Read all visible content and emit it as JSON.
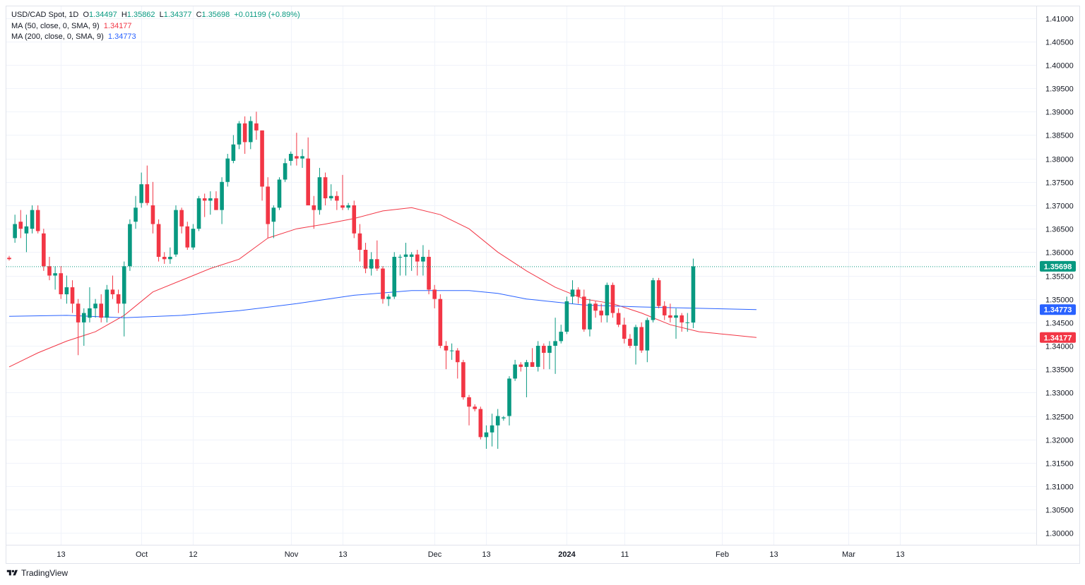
{
  "legend": {
    "symbol": "USD/CAD Spot, 1D",
    "o_label": "O",
    "o_value": "1.34497",
    "h_label": "H",
    "h_value": "1.35862",
    "l_label": "L",
    "l_value": "1.34377",
    "c_label": "C",
    "c_value": "1.35698",
    "change": "+0.01199 (+0.89%)",
    "ma50_label": "MA (50, close, 0, SMA, 9)",
    "ma50_value": "1.34177",
    "ma200_label": "MA (200, close, 0, SMA, 9)",
    "ma200_value": "1.34773"
  },
  "brand": {
    "name": "TradingView"
  },
  "colors": {
    "up": "#089981",
    "down": "#f23645",
    "ma50": "#f23645",
    "ma200": "#2962ff",
    "grid": "#f0f3fa",
    "text": "#131722",
    "price_line": "#089981"
  },
  "chart_data": {
    "type": "candlestick",
    "title": "USD/CAD Spot, 1D",
    "ylim": [
      1.2975,
      1.4125
    ],
    "y_ticks": [
      "1.41000",
      "1.40500",
      "1.40000",
      "1.39500",
      "1.39000",
      "1.38500",
      "1.38000",
      "1.37500",
      "1.37000",
      "1.36500",
      "1.36000",
      "1.35500",
      "1.35000",
      "1.34500",
      "1.34000",
      "1.33500",
      "1.33000",
      "1.32500",
      "1.32000",
      "1.31500",
      "1.31000",
      "1.30500",
      "1.30000"
    ],
    "x_axis": {
      "unit": "trading-day index",
      "range": [
        0,
        145
      ],
      "ticks": [
        {
          "label": "13",
          "x": 9
        },
        {
          "label": "Oct",
          "x": 23
        },
        {
          "label": "12",
          "x": 32
        },
        {
          "label": "Nov",
          "x": 49
        },
        {
          "label": "13",
          "x": 58
        },
        {
          "label": "Dec",
          "x": 74
        },
        {
          "label": "13",
          "x": 83
        },
        {
          "label": "2024",
          "x": 97
        },
        {
          "label": "11",
          "x": 107
        },
        {
          "label": "Feb",
          "x": 124
        },
        {
          "label": "13",
          "x": 133
        },
        {
          "label": "Mar",
          "x": 146
        },
        {
          "label": "13",
          "x": 155
        }
      ]
    },
    "candles": [
      {
        "o": 1.3588,
        "h": 1.3592,
        "l": 1.3582,
        "c": 1.3585
      },
      {
        "o": 1.363,
        "h": 1.368,
        "l": 1.362,
        "c": 1.366
      },
      {
        "o": 1.3665,
        "h": 1.369,
        "l": 1.363,
        "c": 1.365
      },
      {
        "o": 1.364,
        "h": 1.368,
        "l": 1.36,
        "c": 1.3655
      },
      {
        "o": 1.365,
        "h": 1.37,
        "l": 1.364,
        "c": 1.369
      },
      {
        "o": 1.369,
        "h": 1.37,
        "l": 1.364,
        "c": 1.3645
      },
      {
        "o": 1.364,
        "h": 1.365,
        "l": 1.356,
        "c": 1.357
      },
      {
        "o": 1.357,
        "h": 1.359,
        "l": 1.354,
        "c": 1.355
      },
      {
        "o": 1.355,
        "h": 1.357,
        "l": 1.352,
        "c": 1.3555
      },
      {
        "o": 1.3555,
        "h": 1.357,
        "l": 1.35,
        "c": 1.351
      },
      {
        "o": 1.351,
        "h": 1.355,
        "l": 1.349,
        "c": 1.3525
      },
      {
        "o": 1.3525,
        "h": 1.354,
        "l": 1.347,
        "c": 1.349
      },
      {
        "o": 1.349,
        "h": 1.35,
        "l": 1.338,
        "c": 1.345
      },
      {
        "o": 1.345,
        "h": 1.348,
        "l": 1.34,
        "c": 1.347
      },
      {
        "o": 1.346,
        "h": 1.3525,
        "l": 1.345,
        "c": 1.348
      },
      {
        "o": 1.348,
        "h": 1.35,
        "l": 1.346,
        "c": 1.349
      },
      {
        "o": 1.349,
        "h": 1.351,
        "l": 1.345,
        "c": 1.346
      },
      {
        "o": 1.346,
        "h": 1.353,
        "l": 1.345,
        "c": 1.352
      },
      {
        "o": 1.352,
        "h": 1.355,
        "l": 1.35,
        "c": 1.351
      },
      {
        "o": 1.351,
        "h": 1.352,
        "l": 1.347,
        "c": 1.349
      },
      {
        "o": 1.349,
        "h": 1.358,
        "l": 1.342,
        "c": 1.357
      },
      {
        "o": 1.357,
        "h": 1.367,
        "l": 1.356,
        "c": 1.366
      },
      {
        "o": 1.3665,
        "h": 1.372,
        "l": 1.365,
        "c": 1.3695
      },
      {
        "o": 1.3705,
        "h": 1.377,
        "l": 1.3695,
        "c": 1.3745
      },
      {
        "o": 1.3745,
        "h": 1.3785,
        "l": 1.37,
        "c": 1.3705
      },
      {
        "o": 1.37,
        "h": 1.375,
        "l": 1.364,
        "c": 1.366
      },
      {
        "o": 1.366,
        "h": 1.367,
        "l": 1.358,
        "c": 1.359
      },
      {
        "o": 1.359,
        "h": 1.36,
        "l": 1.3575,
        "c": 1.3585
      },
      {
        "o": 1.3585,
        "h": 1.361,
        "l": 1.3575,
        "c": 1.359
      },
      {
        "o": 1.3595,
        "h": 1.37,
        "l": 1.359,
        "c": 1.369
      },
      {
        "o": 1.369,
        "h": 1.3695,
        "l": 1.364,
        "c": 1.3655
      },
      {
        "o": 1.3655,
        "h": 1.3665,
        "l": 1.3605,
        "c": 1.361
      },
      {
        "o": 1.361,
        "h": 1.366,
        "l": 1.3605,
        "c": 1.365
      },
      {
        "o": 1.365,
        "h": 1.372,
        "l": 1.3645,
        "c": 1.3715
      },
      {
        "o": 1.3715,
        "h": 1.3725,
        "l": 1.3675,
        "c": 1.371
      },
      {
        "o": 1.371,
        "h": 1.373,
        "l": 1.368,
        "c": 1.3715
      },
      {
        "o": 1.3715,
        "h": 1.373,
        "l": 1.369,
        "c": 1.369
      },
      {
        "o": 1.369,
        "h": 1.376,
        "l": 1.366,
        "c": 1.375
      },
      {
        "o": 1.375,
        "h": 1.381,
        "l": 1.374,
        "c": 1.38
      },
      {
        "o": 1.3795,
        "h": 1.385,
        "l": 1.379,
        "c": 1.383
      },
      {
        "o": 1.383,
        "h": 1.388,
        "l": 1.382,
        "c": 1.3875
      },
      {
        "o": 1.3875,
        "h": 1.389,
        "l": 1.381,
        "c": 1.3835
      },
      {
        "o": 1.3835,
        "h": 1.389,
        "l": 1.382,
        "c": 1.388
      },
      {
        "o": 1.3875,
        "h": 1.39,
        "l": 1.384,
        "c": 1.386
      },
      {
        "o": 1.386,
        "h": 1.386,
        "l": 1.371,
        "c": 1.374
      },
      {
        "o": 1.374,
        "h": 1.376,
        "l": 1.363,
        "c": 1.366
      },
      {
        "o": 1.3665,
        "h": 1.37,
        "l": 1.363,
        "c": 1.3695
      },
      {
        "o": 1.3695,
        "h": 1.376,
        "l": 1.369,
        "c": 1.3755
      },
      {
        "o": 1.3755,
        "h": 1.38,
        "l": 1.375,
        "c": 1.379
      },
      {
        "o": 1.3795,
        "h": 1.3815,
        "l": 1.3785,
        "c": 1.381
      },
      {
        "o": 1.3805,
        "h": 1.3855,
        "l": 1.3785,
        "c": 1.38
      },
      {
        "o": 1.38,
        "h": 1.382,
        "l": 1.378,
        "c": 1.3805
      },
      {
        "o": 1.38,
        "h": 1.3845,
        "l": 1.37,
        "c": 1.37
      },
      {
        "o": 1.37,
        "h": 1.372,
        "l": 1.365,
        "c": 1.369
      },
      {
        "o": 1.369,
        "h": 1.378,
        "l": 1.368,
        "c": 1.376
      },
      {
        "o": 1.376,
        "h": 1.377,
        "l": 1.37,
        "c": 1.3715
      },
      {
        "o": 1.3715,
        "h": 1.3745,
        "l": 1.371,
        "c": 1.372
      },
      {
        "o": 1.372,
        "h": 1.373,
        "l": 1.369,
        "c": 1.371
      },
      {
        "o": 1.37,
        "h": 1.3765,
        "l": 1.369,
        "c": 1.3695
      },
      {
        "o": 1.3695,
        "h": 1.3705,
        "l": 1.369,
        "c": 1.37
      },
      {
        "o": 1.37,
        "h": 1.371,
        "l": 1.363,
        "c": 1.364
      },
      {
        "o": 1.364,
        "h": 1.366,
        "l": 1.358,
        "c": 1.3605
      },
      {
        "o": 1.3605,
        "h": 1.362,
        "l": 1.3555,
        "c": 1.3565
      },
      {
        "o": 1.3565,
        "h": 1.36,
        "l": 1.355,
        "c": 1.3585
      },
      {
        "o": 1.3585,
        "h": 1.3625,
        "l": 1.356,
        "c": 1.3565
      },
      {
        "o": 1.3565,
        "h": 1.357,
        "l": 1.349,
        "c": 1.35
      },
      {
        "o": 1.35,
        "h": 1.351,
        "l": 1.3485,
        "c": 1.3505
      },
      {
        "o": 1.3505,
        "h": 1.36,
        "l": 1.35,
        "c": 1.359
      },
      {
        "o": 1.359,
        "h": 1.3595,
        "l": 1.355,
        "c": 1.359
      },
      {
        "o": 1.359,
        "h": 1.362,
        "l": 1.355,
        "c": 1.3595
      },
      {
        "o": 1.359,
        "h": 1.36,
        "l": 1.356,
        "c": 1.3595
      },
      {
        "o": 1.3595,
        "h": 1.3605,
        "l": 1.355,
        "c": 1.358
      },
      {
        "o": 1.358,
        "h": 1.3615,
        "l": 1.355,
        "c": 1.359
      },
      {
        "o": 1.359,
        "h": 1.3605,
        "l": 1.351,
        "c": 1.352
      },
      {
        "o": 1.352,
        "h": 1.353,
        "l": 1.348,
        "c": 1.35
      },
      {
        "o": 1.35,
        "h": 1.351,
        "l": 1.3395,
        "c": 1.34
      },
      {
        "o": 1.34,
        "h": 1.341,
        "l": 1.335,
        "c": 1.339
      },
      {
        "o": 1.339,
        "h": 1.3405,
        "l": 1.337,
        "c": 1.339
      },
      {
        "o": 1.339,
        "h": 1.3395,
        "l": 1.333,
        "c": 1.3365
      },
      {
        "o": 1.3365,
        "h": 1.337,
        "l": 1.3285,
        "c": 1.329
      },
      {
        "o": 1.329,
        "h": 1.3295,
        "l": 1.323,
        "c": 1.327
      },
      {
        "o": 1.327,
        "h": 1.3275,
        "l": 1.326,
        "c": 1.3265
      },
      {
        "o": 1.3265,
        "h": 1.327,
        "l": 1.32,
        "c": 1.3205
      },
      {
        "o": 1.3205,
        "h": 1.323,
        "l": 1.318,
        "c": 1.3215
      },
      {
        "o": 1.3215,
        "h": 1.3255,
        "l": 1.3185,
        "c": 1.323
      },
      {
        "o": 1.323,
        "h": 1.3265,
        "l": 1.318,
        "c": 1.325
      },
      {
        "o": 1.3245,
        "h": 1.325,
        "l": 1.324,
        "c": 1.3247
      },
      {
        "o": 1.325,
        "h": 1.3335,
        "l": 1.323,
        "c": 1.333
      },
      {
        "o": 1.333,
        "h": 1.337,
        "l": 1.3325,
        "c": 1.336
      },
      {
        "o": 1.336,
        "h": 1.3365,
        "l": 1.3345,
        "c": 1.3355
      },
      {
        "o": 1.3355,
        "h": 1.337,
        "l": 1.329,
        "c": 1.3365
      },
      {
        "o": 1.3365,
        "h": 1.3395,
        "l": 1.3355,
        "c": 1.3355
      },
      {
        "o": 1.3355,
        "h": 1.341,
        "l": 1.3345,
        "c": 1.34
      },
      {
        "o": 1.34,
        "h": 1.3405,
        "l": 1.335,
        "c": 1.3385
      },
      {
        "o": 1.3385,
        "h": 1.341,
        "l": 1.335,
        "c": 1.34
      },
      {
        "o": 1.34,
        "h": 1.346,
        "l": 1.334,
        "c": 1.341
      },
      {
        "o": 1.341,
        "h": 1.3445,
        "l": 1.3405,
        "c": 1.343
      },
      {
        "o": 1.343,
        "h": 1.3505,
        "l": 1.3425,
        "c": 1.3495
      },
      {
        "o": 1.3505,
        "h": 1.354,
        "l": 1.349,
        "c": 1.352
      },
      {
        "o": 1.352,
        "h": 1.3525,
        "l": 1.349,
        "c": 1.3505
      },
      {
        "o": 1.3505,
        "h": 1.352,
        "l": 1.343,
        "c": 1.3435
      },
      {
        "o": 1.3435,
        "h": 1.35,
        "l": 1.342,
        "c": 1.349
      },
      {
        "o": 1.349,
        "h": 1.3495,
        "l": 1.346,
        "c": 1.3475
      },
      {
        "o": 1.3475,
        "h": 1.349,
        "l": 1.345,
        "c": 1.3465
      },
      {
        "o": 1.3465,
        "h": 1.3535,
        "l": 1.345,
        "c": 1.353
      },
      {
        "o": 1.353,
        "h": 1.3535,
        "l": 1.346,
        "c": 1.347
      },
      {
        "o": 1.347,
        "h": 1.348,
        "l": 1.344,
        "c": 1.3445
      },
      {
        "o": 1.3445,
        "h": 1.346,
        "l": 1.3405,
        "c": 1.3415
      },
      {
        "o": 1.3415,
        "h": 1.3425,
        "l": 1.3395,
        "c": 1.34
      },
      {
        "o": 1.34,
        "h": 1.3445,
        "l": 1.336,
        "c": 1.344
      },
      {
        "o": 1.344,
        "h": 1.345,
        "l": 1.3385,
        "c": 1.339
      },
      {
        "o": 1.339,
        "h": 1.346,
        "l": 1.3365,
        "c": 1.3455
      },
      {
        "o": 1.3455,
        "h": 1.3545,
        "l": 1.345,
        "c": 1.354
      },
      {
        "o": 1.354,
        "h": 1.3545,
        "l": 1.348,
        "c": 1.3485
      },
      {
        "o": 1.3485,
        "h": 1.3495,
        "l": 1.3455,
        "c": 1.3465
      },
      {
        "o": 1.3465,
        "h": 1.349,
        "l": 1.345,
        "c": 1.346
      },
      {
        "o": 1.346,
        "h": 1.348,
        "l": 1.3415,
        "c": 1.3465
      },
      {
        "o": 1.3465,
        "h": 1.347,
        "l": 1.343,
        "c": 1.345
      },
      {
        "o": 1.345,
        "h": 1.347,
        "l": 1.343,
        "c": 1.345
      },
      {
        "o": 1.34497,
        "h": 1.35862,
        "l": 1.34377,
        "c": 1.35698
      }
    ],
    "series": [
      {
        "name": "MA (50, close, 0, SMA, 9)",
        "color": "#f23645",
        "points": [
          [
            0,
            1.3355
          ],
          [
            5,
            1.3385
          ],
          [
            10,
            1.341
          ],
          [
            15,
            1.343
          ],
          [
            20,
            1.3465
          ],
          [
            25,
            1.3515
          ],
          [
            30,
            1.354
          ],
          [
            35,
            1.3565
          ],
          [
            40,
            1.3585
          ],
          [
            45,
            1.363
          ],
          [
            50,
            1.365
          ],
          [
            55,
            1.366
          ],
          [
            60,
            1.3672
          ],
          [
            65,
            1.3688
          ],
          [
            70,
            1.3695
          ],
          [
            75,
            1.368
          ],
          [
            80,
            1.365
          ],
          [
            85,
            1.36
          ],
          [
            90,
            1.356
          ],
          [
            95,
            1.3525
          ],
          [
            100,
            1.35
          ],
          [
            105,
            1.349
          ],
          [
            110,
            1.347
          ],
          [
            115,
            1.3445
          ],
          [
            120,
            1.343
          ],
          [
            125,
            1.3424
          ],
          [
            130,
            1.34177
          ]
        ]
      },
      {
        "name": "MA (200, close, 0, SMA, 9)",
        "color": "#2962ff",
        "points": [
          [
            0,
            1.3463
          ],
          [
            10,
            1.3465
          ],
          [
            20,
            1.346
          ],
          [
            30,
            1.3465
          ],
          [
            40,
            1.3475
          ],
          [
            50,
            1.349
          ],
          [
            60,
            1.3508
          ],
          [
            70,
            1.3518
          ],
          [
            80,
            1.3518
          ],
          [
            85,
            1.3512
          ],
          [
            90,
            1.35
          ],
          [
            100,
            1.3487
          ],
          [
            110,
            1.3483
          ],
          [
            120,
            1.348
          ],
          [
            130,
            1.34773
          ]
        ]
      }
    ],
    "last_price": "1.35698",
    "price_labels": [
      {
        "value": 1.35698,
        "text": "1.35698",
        "color": "#089981"
      },
      {
        "value": 1.34773,
        "text": "1.34773",
        "color": "#2962ff"
      },
      {
        "value": 1.34177,
        "text": "1.34177",
        "color": "#f23645"
      }
    ]
  }
}
